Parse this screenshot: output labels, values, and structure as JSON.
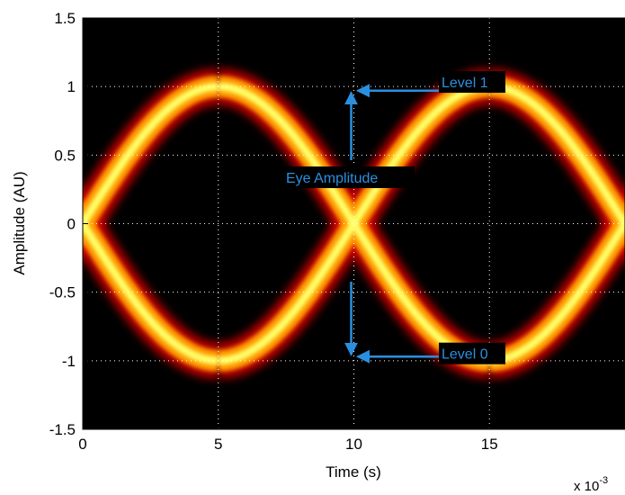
{
  "chart_data": {
    "type": "heatmap",
    "description_of_marks": "eye diagram density",
    "xlabel": "Time (s)",
    "ylabel": "Amplitude (AU)",
    "x_exponent_label": "x 10",
    "x_exponent_power": "-3",
    "xlim": [
      0,
      0.02
    ],
    "ylim": [
      -1.5,
      1.5
    ],
    "x_ticks": [
      0,
      0.005,
      0.01,
      0.015
    ],
    "x_tick_labels": [
      "0",
      "5",
      "10",
      "15"
    ],
    "y_ticks": [
      1.5,
      1,
      0.5,
      0,
      -0.5,
      -1,
      -1.5
    ],
    "y_tick_labels": [
      "1.5",
      "1",
      "0.5",
      "0",
      "-0.5",
      "-1",
      "-1.5"
    ],
    "grid": true,
    "eye": {
      "level_1": 1,
      "level_0": -1,
      "crossings_x": [
        0,
        0.005,
        0.01,
        0.015,
        0.02
      ]
    },
    "annotations": [
      {
        "text": "Level 1",
        "x": 0.01,
        "y": 0.97
      },
      {
        "text": "Level 0",
        "x": 0.01,
        "y": -0.97
      },
      {
        "text": "Eye Amplitude",
        "x": 0.01,
        "y": 0.0
      }
    ],
    "colors": {
      "background": "#000000",
      "trace_outer": "#d40000",
      "trace_mid": "#ff9a00",
      "trace_core": "#ffff66",
      "annotation": "#2b8fe0",
      "label_box": "#000000"
    }
  }
}
